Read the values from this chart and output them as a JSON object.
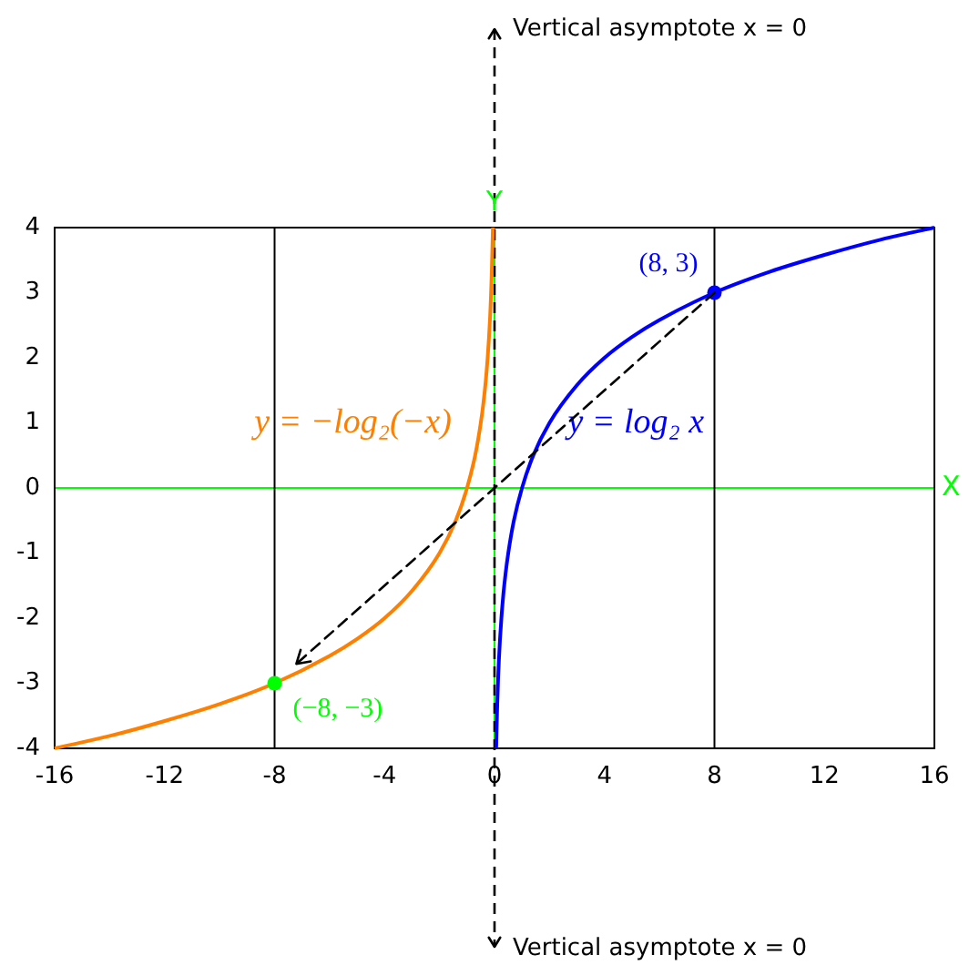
{
  "chart_data": {
    "type": "line",
    "xlabel": "X",
    "ylabel": "Y",
    "xlim": [
      -16,
      16
    ],
    "ylim": [
      -4,
      4
    ],
    "xticks": [
      -16,
      -12,
      -8,
      -4,
      0,
      4,
      8,
      12,
      16
    ],
    "yticks": [
      -4,
      -3,
      -2,
      -1,
      0,
      1,
      2,
      3,
      4
    ],
    "series": [
      {
        "name": "y = log₂ x",
        "type": "line",
        "color": "#0000ff",
        "x": [
          0.06,
          0.08,
          0.1,
          0.13,
          0.16,
          0.2,
          0.25,
          0.32,
          0.4,
          0.5,
          0.7,
          1,
          1.4,
          2,
          3,
          4,
          5,
          6,
          8,
          10,
          12,
          14,
          16
        ],
        "values": [
          -4,
          -3.64,
          -3.32,
          -2.94,
          -2.64,
          -2.32,
          -2,
          -1.64,
          -1.32,
          -1,
          -0.51,
          0,
          0.49,
          1,
          1.58,
          2,
          2.32,
          2.58,
          3,
          3.32,
          3.58,
          3.81,
          4
        ]
      },
      {
        "name": "y = −log₂(−x)",
        "type": "line",
        "color": "#ff8000",
        "x": [
          -16,
          -14,
          -12,
          -10,
          -8,
          -6,
          -5,
          -4,
          -3,
          -2,
          -1.4,
          -1,
          -0.7,
          -0.5,
          -0.4,
          -0.32,
          -0.25,
          -0.2,
          -0.16,
          -0.13,
          -0.1,
          -0.08,
          -0.06
        ],
        "values": [
          -4,
          -3.81,
          -3.58,
          -3.32,
          -3,
          -2.58,
          -2.32,
          -2,
          -1.58,
          -1,
          -0.49,
          0,
          0.51,
          1,
          1.32,
          1.64,
          2,
          2.32,
          2.64,
          2.94,
          3.32,
          3.64,
          4
        ]
      },
      {
        "type": "scatter",
        "color": "#0000ff",
        "marker": "circle",
        "x": [
          8
        ],
        "values": [
          3
        ]
      },
      {
        "type": "scatter",
        "color": "#00ff00",
        "marker": "circle",
        "x": [
          -8
        ],
        "values": [
          -3
        ]
      }
    ],
    "ref_lines": [
      {
        "axis": "y",
        "value": 0,
        "color": "#00ff00"
      },
      {
        "axis": "x",
        "value": 0,
        "label": "Vertical asymptote x = 0",
        "color": "#000000",
        "line_style": "dashed"
      },
      {
        "axis": "x",
        "value": -8,
        "color": "#000000"
      },
      {
        "axis": "x",
        "value": 8,
        "color": "#000000"
      },
      {
        "axis": "x",
        "value": 0,
        "color": "#00ff00"
      }
    ],
    "annotations": [
      {
        "text": "(8, 3)",
        "x": 8,
        "y": 3
      },
      {
        "text": "(−8, −3)",
        "x": -8,
        "y": -3
      },
      "Vertical asymptote x = 0"
    ]
  }
}
